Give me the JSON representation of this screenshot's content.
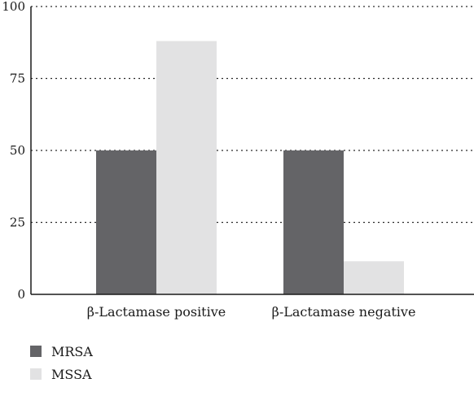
{
  "chart_data": {
    "type": "bar",
    "categories": [
      "β-Lactamase positive",
      "β-Lactamase negative"
    ],
    "series": [
      {
        "name": "MRSA",
        "values": [
          50,
          50
        ],
        "color": "#646467"
      },
      {
        "name": "MSSA",
        "values": [
          88,
          11.5
        ],
        "color": "#e2e2e3"
      }
    ],
    "ylim": [
      0,
      100
    ],
    "yticks": [
      0,
      25,
      50,
      75,
      100
    ],
    "grid": "dotted-horizontal",
    "legend": "bottom-left"
  }
}
